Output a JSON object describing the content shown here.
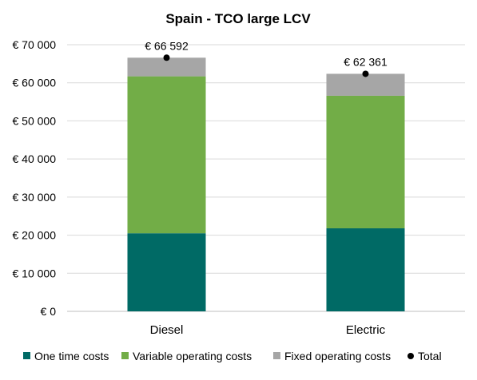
{
  "chart_data": {
    "type": "bar",
    "stacked": true,
    "title": "Spain - TCO large LCV",
    "categories": [
      "Diesel",
      "Electric"
    ],
    "series": [
      {
        "name": "One time costs",
        "values": [
          20500,
          21800
        ],
        "color": "#006a65"
      },
      {
        "name": "Variable operating costs",
        "values": [
          41200,
          34800
        ],
        "color": "#72ad47"
      },
      {
        "name": "Fixed operating costs",
        "values": [
          4892,
          5761
        ],
        "color": "#a6a6a6"
      }
    ],
    "totals": {
      "name": "Total",
      "values": [
        66592,
        62361
      ],
      "labels": [
        "€ 66 592",
        "€ 62 361"
      ],
      "color": "#000000"
    },
    "ylim": [
      0,
      70000
    ],
    "yticks": [
      0,
      10000,
      20000,
      30000,
      40000,
      50000,
      60000,
      70000
    ],
    "ytick_labels": [
      "€ 0",
      "€ 10 000",
      "€ 20 000",
      "€ 30 000",
      "€ 40 000",
      "€ 50 000",
      "€ 60 000",
      "€ 70 000"
    ],
    "grid": true,
    "legend_position": "bottom"
  }
}
